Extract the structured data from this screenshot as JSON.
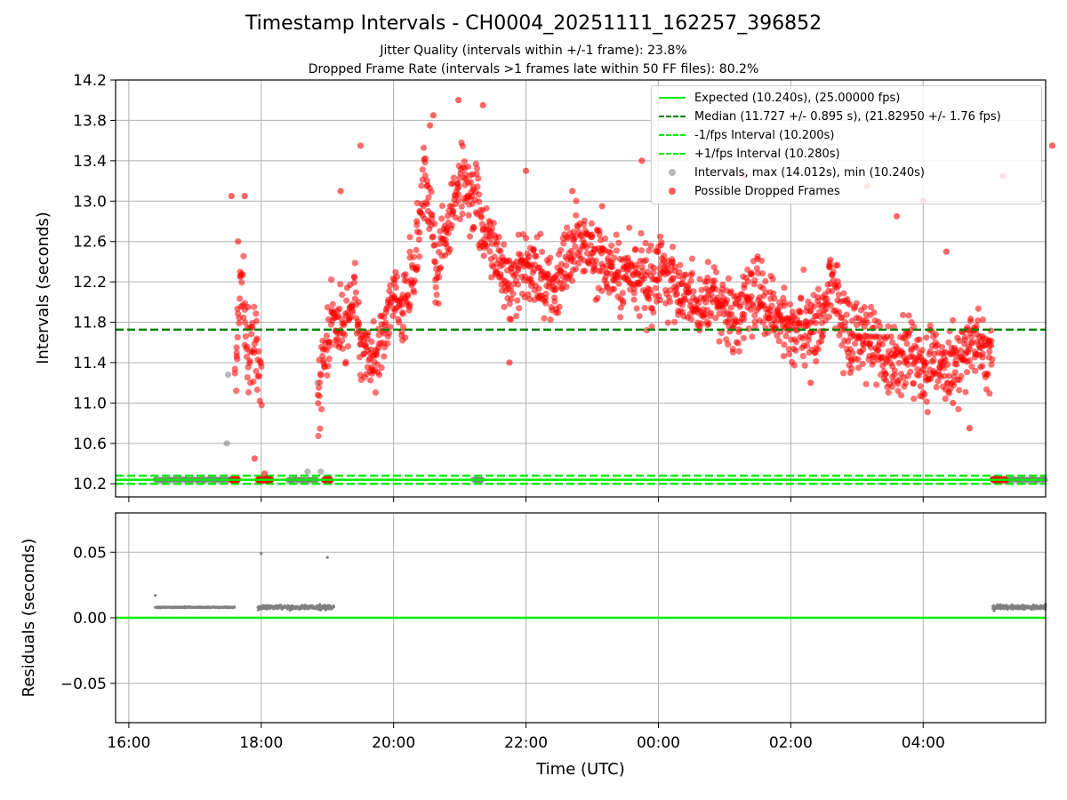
{
  "figure": {
    "title": "Timestamp Intervals - CH0004_20251111_162257_396852",
    "subtitle1": "Jitter Quality (intervals within +/-1 frame): 23.8%",
    "subtitle2": "Dropped Frame Rate (intervals >1 frames late within 50 FF files): 80.2%"
  },
  "legend": {
    "expected": "Expected (10.240s), (25.00000 fps)",
    "median": "Median (11.727 +/- 0.895 s), (21.82950 +/- 1.76 fps)",
    "minus": "-1/fps Interval (10.200s)",
    "plus": "+1/fps Interval (10.280s)",
    "intervals": "Intervals, max (14.012s), min (10.240s)",
    "dropped": "Possible Dropped Frames"
  },
  "colors": {
    "expected": "#00ee00",
    "median": "#008000",
    "interval_points": "#808080",
    "dropped_points": "#ff0000",
    "grid": "#b0b0b0"
  },
  "chart_data": [
    {
      "type": "scatter",
      "title": "Timestamp Intervals - CH0004_20251111_162257_396852",
      "xlabel": "",
      "ylabel": "Intervals (seconds)",
      "x_unit": "hours since 16:00 UTC",
      "xlim": [
        -0.2,
        13.85
      ],
      "ylim": [
        10.07,
        14.2
      ],
      "yticks": [
        10.2,
        10.6,
        11.0,
        11.4,
        11.8,
        12.2,
        12.6,
        13.0,
        13.4,
        13.8,
        14.2
      ],
      "ytick_labels": [
        "10.2",
        "10.6",
        "11.0",
        "11.4",
        "11.8",
        "12.2",
        "12.6",
        "13.0",
        "13.4",
        "13.8",
        "14.2"
      ],
      "grid": true,
      "reference_lines": {
        "expected": 10.24,
        "median": 11.727,
        "minus_1fps": 10.2,
        "plus_1fps": 10.28
      },
      "on_time_segments": [
        [
          0.4,
          1.55
        ],
        [
          2.4,
          2.85
        ],
        [
          5.2,
          5.35
        ],
        [
          13.1,
          13.85
        ]
      ],
      "dropped_trend": [
        [
          1.6,
          11.3
        ],
        [
          1.7,
          12.3
        ],
        [
          1.8,
          11.4
        ],
        [
          1.9,
          11.7
        ],
        [
          2.0,
          11.1
        ],
        [
          2.85,
          11.0
        ],
        [
          3.0,
          11.6
        ],
        [
          3.1,
          11.8
        ],
        [
          3.25,
          11.7
        ],
        [
          3.4,
          12.1
        ],
        [
          3.55,
          11.5
        ],
        [
          3.7,
          11.4
        ],
        [
          3.85,
          11.7
        ],
        [
          4.0,
          12.1
        ],
        [
          4.15,
          11.8
        ],
        [
          4.25,
          12.2
        ],
        [
          4.35,
          12.4
        ],
        [
          4.45,
          13.3
        ],
        [
          4.55,
          12.9
        ],
        [
          4.65,
          12.2
        ],
        [
          4.75,
          12.6
        ],
        [
          4.9,
          13.0
        ],
        [
          5.05,
          13.2
        ],
        [
          5.2,
          13.0
        ],
        [
          5.35,
          12.8
        ],
        [
          5.5,
          12.5
        ],
        [
          5.65,
          12.3
        ],
        [
          5.8,
          12.2
        ],
        [
          6.0,
          12.4
        ],
        [
          6.2,
          12.3
        ],
        [
          6.4,
          12.1
        ],
        [
          6.6,
          12.5
        ],
        [
          6.8,
          12.6
        ],
        [
          7.0,
          12.5
        ],
        [
          7.2,
          12.4
        ],
        [
          7.4,
          12.2
        ],
        [
          7.6,
          12.3
        ],
        [
          7.8,
          12.2
        ],
        [
          8.0,
          12.3
        ],
        [
          8.2,
          12.2
        ],
        [
          8.4,
          12.1
        ],
        [
          8.6,
          11.9
        ],
        [
          8.8,
          12.0
        ],
        [
          9.0,
          11.9
        ],
        [
          9.2,
          11.8
        ],
        [
          9.4,
          12.1
        ],
        [
          9.6,
          12.0
        ],
        [
          9.8,
          11.8
        ],
        [
          10.0,
          11.7
        ],
        [
          10.2,
          11.8
        ],
        [
          10.4,
          11.7
        ],
        [
          10.6,
          12.2
        ],
        [
          10.8,
          11.8
        ],
        [
          11.0,
          11.6
        ],
        [
          11.2,
          11.7
        ],
        [
          11.4,
          11.5
        ],
        [
          11.6,
          11.4
        ],
        [
          11.8,
          11.5
        ],
        [
          12.0,
          11.3
        ],
        [
          12.2,
          11.4
        ],
        [
          12.4,
          11.4
        ],
        [
          12.6,
          11.5
        ],
        [
          12.8,
          11.6
        ],
        [
          13.0,
          11.5
        ]
      ],
      "series": [
        {
          "name": "Intervals, max (14.012s), min (10.240s)",
          "marker": "circle",
          "color": "#808080",
          "points": [
            [
              1.5,
              11.28
            ],
            [
              1.48,
              10.6
            ],
            [
              2.7,
              10.32
            ],
            [
              2.9,
              10.32
            ],
            [
              2.85,
              11.2
            ]
          ]
        },
        {
          "name": "Possible Dropped Frames",
          "marker": "circle",
          "color": "#ff0000",
          "points": [
            [
              4.98,
              14.0
            ],
            [
              5.35,
              13.95
            ],
            [
              4.6,
              13.85
            ],
            [
              4.55,
              13.75
            ],
            [
              7.75,
              13.4
            ],
            [
              6.0,
              13.3
            ],
            [
              9.3,
              13.25
            ],
            [
              13.95,
              13.55
            ],
            [
              3.5,
              13.55
            ],
            [
              1.55,
              13.05
            ],
            [
              1.75,
              13.05
            ],
            [
              2.05,
              10.3
            ],
            [
              12.35,
              12.5
            ],
            [
              13.2,
              13.25
            ],
            [
              6.7,
              13.1
            ],
            [
              8.2,
              13.1
            ],
            [
              3.2,
              13.1
            ],
            [
              4.35,
              12.8
            ],
            [
              12.0,
              13.0
            ],
            [
              11.6,
              12.85
            ],
            [
              12.45,
              11.0
            ],
            [
              12.7,
              10.75
            ],
            [
              10.9,
              11.3
            ],
            [
              10.3,
              11.2
            ],
            [
              7.15,
              12.95
            ],
            [
              5.75,
              11.4
            ],
            [
              11.15,
              13.15
            ],
            [
              1.65,
              12.6
            ],
            [
              1.8,
              11.95
            ],
            [
              1.9,
              10.45
            ]
          ],
          "cluster_segments": [
            [
              1.55,
              1.65
            ],
            [
              1.95,
              2.15
            ],
            [
              2.95,
              3.05
            ],
            [
              13.05,
              13.25
            ]
          ]
        }
      ]
    },
    {
      "type": "scatter",
      "xlabel": "Time (UTC)",
      "ylabel": "Residuals (seconds)",
      "xlim": [
        -0.2,
        13.85
      ],
      "ylim": [
        -0.08,
        0.08
      ],
      "yticks": [
        0.05,
        0.0,
        -0.05
      ],
      "ytick_labels": [
        "0.05",
        "0.00",
        "−0.05"
      ],
      "xticks": [
        0,
        2,
        4,
        6,
        8,
        10,
        12
      ],
      "xtick_labels": [
        "16:00",
        "18:00",
        "20:00",
        "22:00",
        "00:00",
        "02:00",
        "04:00"
      ],
      "grid": true,
      "baseline": 0.0,
      "series": [
        {
          "name": "Residuals",
          "marker": "dot",
          "color": "#808080",
          "segments": [
            [
              0.4,
              1.6,
              0.008
            ],
            [
              1.95,
              3.1,
              0.008
            ],
            [
              13.05,
              13.85,
              0.008
            ]
          ],
          "outliers": [
            [
              0.4,
              0.017
            ],
            [
              2.0,
              0.049
            ],
            [
              3.0,
              0.046
            ]
          ]
        }
      ]
    }
  ]
}
